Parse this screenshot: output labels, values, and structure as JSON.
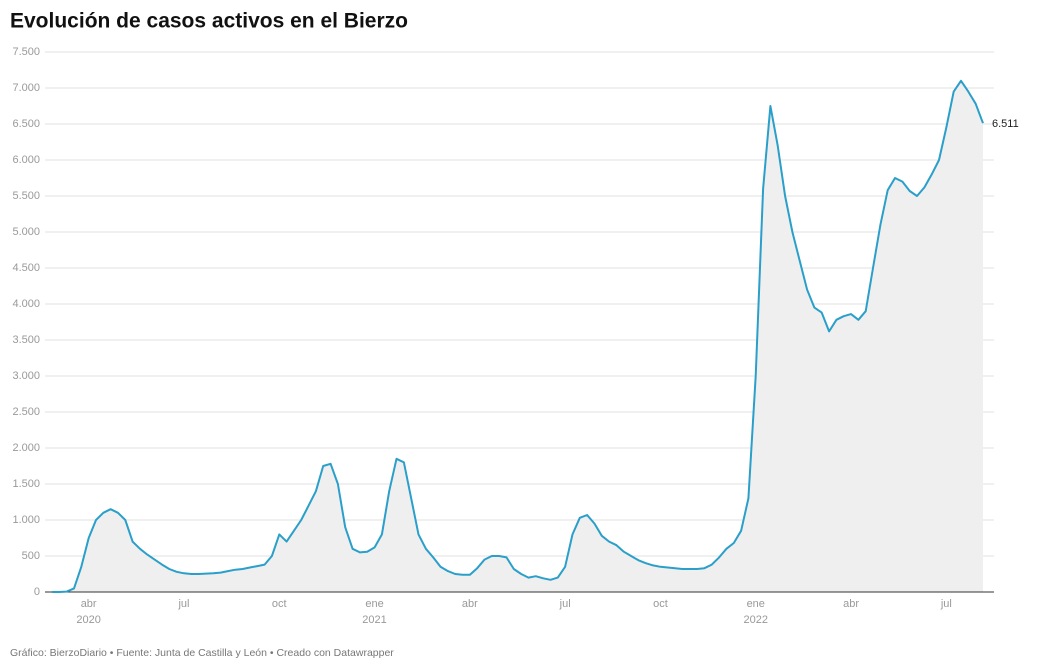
{
  "chart_data": {
    "type": "area-line",
    "title": "Evolución de casos activos en el Bierzo",
    "footer": "Gráfico: BierzoDiario • Fuente: Junta de Castilla y León • Creado con Datawrapper",
    "color": "#2a9fc9",
    "area_color": "#efefef",
    "grid": true,
    "ylim": [
      0,
      7500
    ],
    "yticks": [
      0,
      500,
      {
        "value": 1000,
        "label": "1.000"
      },
      {
        "value": 1500,
        "label": "1.500"
      },
      {
        "value": 2000,
        "label": "2.000"
      },
      {
        "value": 2500,
        "label": "2.500"
      },
      {
        "value": 3000,
        "label": "3.000"
      },
      {
        "value": 3500,
        "label": "3.500"
      },
      {
        "value": 4000,
        "label": "4.000"
      },
      {
        "value": 4500,
        "label": "4.500"
      },
      {
        "value": 5000,
        "label": "5.000"
      },
      {
        "value": 5500,
        "label": "5.500"
      },
      {
        "value": 6000,
        "label": "6.000"
      },
      {
        "value": 6500,
        "label": "6.500"
      },
      {
        "value": 7000,
        "label": "7.000"
      },
      {
        "value": 7500,
        "label": "7.500"
      }
    ],
    "categories": [
      null,
      null,
      null,
      null,
      null,
      "abr",
      null,
      null,
      null,
      null,
      null,
      null,
      null,
      null,
      null,
      null,
      null,
      null,
      "jul",
      null,
      null,
      null,
      null,
      null,
      null,
      null,
      null,
      null,
      null,
      null,
      null,
      "oct",
      null,
      null,
      null,
      null,
      null,
      null,
      null,
      null,
      null,
      null,
      null,
      null,
      "ene",
      null,
      null,
      null,
      null,
      null,
      null,
      null,
      null,
      null,
      null,
      null,
      null,
      "abr",
      null,
      null,
      null,
      null,
      null,
      null,
      null,
      null,
      null,
      null,
      null,
      null,
      "jul",
      null,
      null,
      null,
      null,
      null,
      null,
      null,
      null,
      null,
      null,
      null,
      null,
      "oct",
      null,
      null,
      null,
      null,
      null,
      null,
      null,
      null,
      null,
      null,
      null,
      null,
      "ene",
      null,
      null,
      null,
      null,
      null,
      null,
      null,
      null,
      null,
      null,
      null,
      null,
      "abr",
      null,
      null,
      null,
      null,
      null,
      null,
      null,
      null,
      null,
      null,
      null,
      null,
      "jul",
      null,
      null,
      null,
      null,
      null
    ],
    "category_years": [
      null,
      null,
      null,
      null,
      null,
      "2020",
      null,
      null,
      null,
      null,
      null,
      null,
      null,
      null,
      null,
      null,
      null,
      null,
      null,
      null,
      null,
      null,
      null,
      null,
      null,
      null,
      null,
      null,
      null,
      null,
      null,
      null,
      null,
      null,
      null,
      null,
      null,
      null,
      null,
      null,
      null,
      null,
      null,
      null,
      "2021",
      null,
      null,
      null,
      null,
      null,
      null,
      null,
      null,
      null,
      null,
      null,
      null,
      null,
      null,
      null,
      null,
      null,
      null,
      null,
      null,
      null,
      null,
      null,
      null,
      null,
      null,
      null,
      null,
      null,
      null,
      null,
      null,
      null,
      null,
      null,
      null,
      null,
      null,
      null,
      null,
      null,
      null,
      null,
      null,
      null,
      null,
      null,
      null,
      null,
      null,
      null,
      "2022",
      null,
      null,
      null,
      null,
      null,
      null,
      null,
      null,
      null,
      null,
      null,
      null,
      null,
      null,
      null,
      null,
      null,
      null,
      null,
      null,
      null,
      null,
      null,
      null,
      null,
      null,
      null,
      null,
      null,
      null
    ],
    "values": [
      0,
      0,
      5,
      50,
      350,
      750,
      1000,
      1100,
      1150,
      1100,
      1000,
      700,
      600,
      520,
      450,
      380,
      320,
      280,
      260,
      250,
      250,
      255,
      260,
      270,
      290,
      310,
      320,
      340,
      360,
      380,
      500,
      800,
      700,
      850,
      1000,
      1200,
      1400,
      1750,
      1780,
      1500,
      900,
      600,
      550,
      560,
      620,
      800,
      1400,
      1850,
      1800,
      1300,
      800,
      600,
      480,
      350,
      290,
      250,
      240,
      240,
      330,
      450,
      500,
      500,
      480,
      320,
      250,
      200,
      220,
      190,
      170,
      200,
      350,
      800,
      1030,
      1070,
      950,
      780,
      700,
      650,
      560,
      500,
      440,
      400,
      370,
      350,
      340,
      330,
      320,
      320,
      320,
      330,
      380,
      480,
      600,
      680,
      850,
      1300,
      3000,
      5600,
      6750,
      6200,
      5500,
      5000,
      4600,
      4200,
      3950,
      3880,
      3620,
      3780,
      3830,
      3860,
      3780,
      3900,
      4500,
      5100,
      5580,
      5750,
      5700,
      5570,
      5500,
      5620,
      5800,
      6000,
      6450,
      6950,
      7100,
      6950,
      6780,
      6511
    ],
    "value_labels": [
      null,
      null,
      null,
      null,
      null,
      null,
      null,
      null,
      null,
      null,
      null,
      null,
      null,
      null,
      null,
      null,
      null,
      null,
      null,
      null,
      null,
      null,
      null,
      null,
      null,
      null,
      null,
      null,
      null,
      null,
      null,
      null,
      null,
      null,
      null,
      null,
      null,
      null,
      null,
      null,
      null,
      null,
      null,
      null,
      null,
      null,
      null,
      null,
      null,
      null,
      null,
      null,
      null,
      null,
      null,
      null,
      null,
      null,
      null,
      null,
      null,
      null,
      null,
      null,
      null,
      null,
      null,
      null,
      null,
      null,
      null,
      null,
      null,
      null,
      null,
      null,
      null,
      null,
      null,
      null,
      null,
      null,
      null,
      null,
      null,
      null,
      null,
      null,
      null,
      null,
      null,
      null,
      null,
      null,
      null,
      null,
      null,
      null,
      null,
      null,
      null,
      null,
      null,
      null,
      null,
      null,
      null,
      null,
      null,
      null,
      null,
      null,
      null,
      null,
      null,
      null,
      null,
      null,
      null,
      null,
      null,
      null,
      null,
      null,
      null,
      null,
      null,
      "6.511"
    ]
  }
}
